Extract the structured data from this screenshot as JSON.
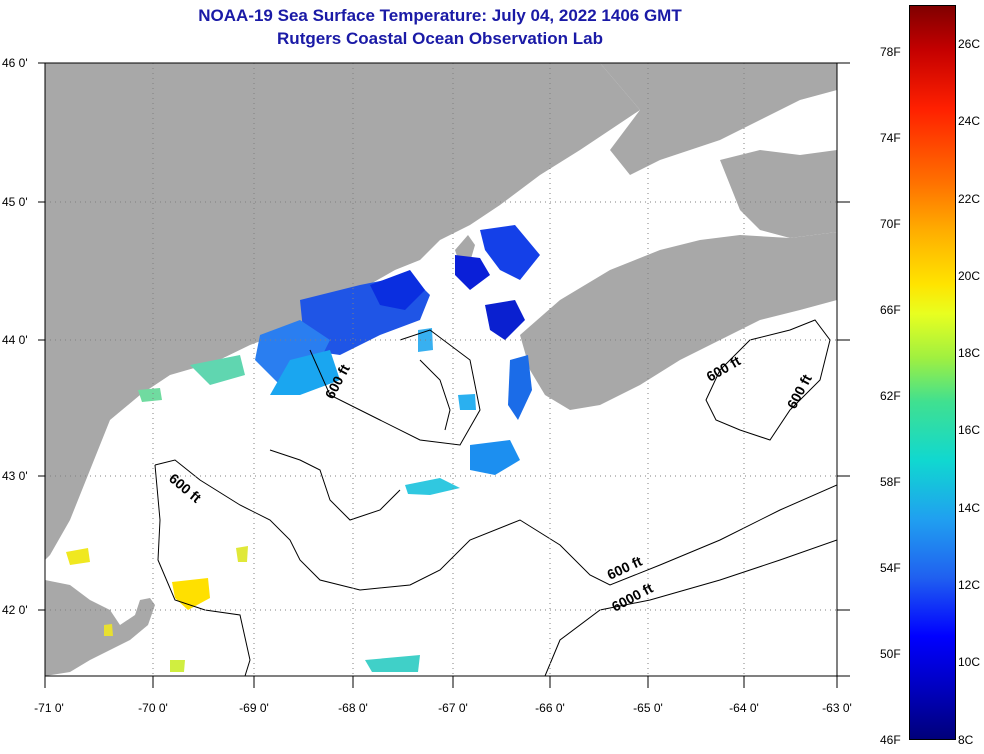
{
  "title": {
    "line1": "NOAA-19 Sea Surface Temperature:  July 04, 2022 1406 GMT",
    "line2": "Rutgers Coastal Ocean Observation Lab"
  },
  "map": {
    "lat_labels": [
      "46 0'",
      "45 0'",
      "44 0'",
      "43 0'",
      "42 0'"
    ],
    "lon_labels": [
      "-71 0'",
      "-70 0'",
      "-69 0'",
      "-68 0'",
      "-67 0'",
      "-66 0'",
      "-65 0'",
      "-64 0'",
      "-63 0'"
    ],
    "contour_labels": [
      "600 ft",
      "600 ft",
      "600 ft",
      "600 ft",
      "600 ft",
      "6000 ft"
    ],
    "land_color": "#a8a8a8",
    "ocean_color": "#ffffff"
  },
  "colorbar": {
    "fahrenheit": [
      "78F",
      "74F",
      "70F",
      "66F",
      "62F",
      "58F",
      "54F",
      "50F",
      "46F"
    ],
    "celsius": [
      "26C",
      "24C",
      "22C",
      "20C",
      "18C",
      "16C",
      "14C",
      "12C",
      "10C",
      "8C"
    ]
  }
}
